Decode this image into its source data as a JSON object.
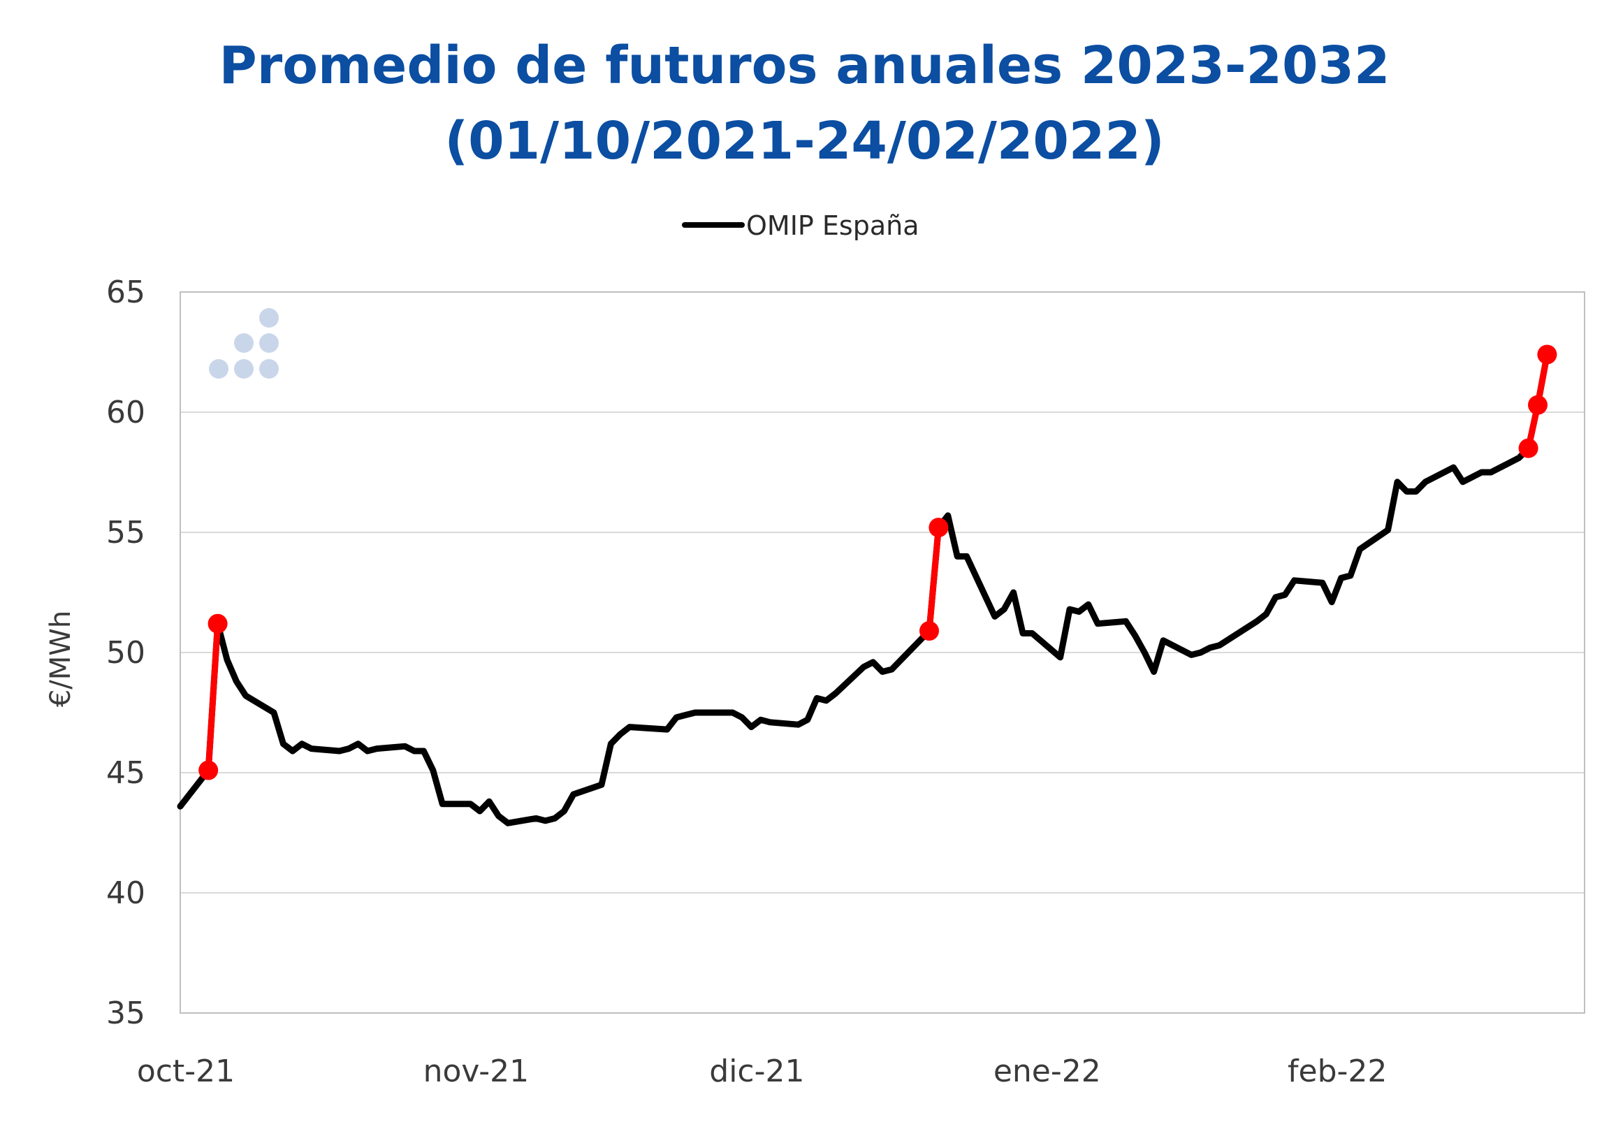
{
  "chart_data": {
    "type": "line",
    "title_line1": "Promedio de futuros anuales 2023-2032",
    "title_line2": "(01/10/2021-24/02/2022)",
    "ylabel": "€/MWh",
    "ylim": [
      35,
      65
    ],
    "yticks": [
      35,
      40,
      45,
      50,
      55,
      60,
      65
    ],
    "xlim": [
      "2021-10-01",
      "2022-02-28"
    ],
    "xticks": [
      {
        "date": "2021-10-01",
        "label": "oct-21"
      },
      {
        "date": "2021-11-01",
        "label": "nov-21"
      },
      {
        "date": "2021-12-01",
        "label": "dic-21"
      },
      {
        "date": "2022-01-01",
        "label": "ene-22"
      },
      {
        "date": "2022-02-01",
        "label": "feb-22"
      }
    ],
    "grid": "horizontal",
    "legend": "top-center",
    "series": [
      {
        "name": "OMIP España",
        "color": "#000000",
        "points": [
          [
            "2021-10-01",
            43.6
          ],
          [
            "2021-10-04",
            45.1
          ],
          [
            "2021-10-05",
            51.2
          ],
          [
            "2021-10-06",
            49.7
          ],
          [
            "2021-10-07",
            48.8
          ],
          [
            "2021-10-08",
            48.2
          ],
          [
            "2021-10-11",
            47.5
          ],
          [
            "2021-10-12",
            46.2
          ],
          [
            "2021-10-13",
            45.9
          ],
          [
            "2021-10-14",
            46.2
          ],
          [
            "2021-10-15",
            46.0
          ],
          [
            "2021-10-18",
            45.9
          ],
          [
            "2021-10-19",
            46.0
          ],
          [
            "2021-10-20",
            46.2
          ],
          [
            "2021-10-21",
            45.9
          ],
          [
            "2021-10-22",
            46.0
          ],
          [
            "2021-10-25",
            46.1
          ],
          [
            "2021-10-26",
            45.9
          ],
          [
            "2021-10-27",
            45.9
          ],
          [
            "2021-10-28",
            45.1
          ],
          [
            "2021-10-29",
            43.7
          ],
          [
            "2021-11-01",
            43.7
          ],
          [
            "2021-11-02",
            43.4
          ],
          [
            "2021-11-03",
            43.8
          ],
          [
            "2021-11-04",
            43.2
          ],
          [
            "2021-11-05",
            42.9
          ],
          [
            "2021-11-08",
            43.1
          ],
          [
            "2021-11-09",
            43.0
          ],
          [
            "2021-11-10",
            43.1
          ],
          [
            "2021-11-11",
            43.4
          ],
          [
            "2021-11-12",
            44.1
          ],
          [
            "2021-11-15",
            44.5
          ],
          [
            "2021-11-16",
            46.2
          ],
          [
            "2021-11-17",
            46.6
          ],
          [
            "2021-11-18",
            46.9
          ],
          [
            "2021-11-22",
            46.8
          ],
          [
            "2021-11-23",
            47.3
          ],
          [
            "2021-11-24",
            47.4
          ],
          [
            "2021-11-25",
            47.5
          ],
          [
            "2021-11-26",
            47.5
          ],
          [
            "2021-11-29",
            47.5
          ],
          [
            "2021-11-30",
            47.3
          ],
          [
            "2021-12-01",
            46.9
          ],
          [
            "2021-12-02",
            47.2
          ],
          [
            "2021-12-03",
            47.1
          ],
          [
            "2021-12-06",
            47.0
          ],
          [
            "2021-12-07",
            47.2
          ],
          [
            "2021-12-08",
            48.1
          ],
          [
            "2021-12-09",
            48.0
          ],
          [
            "2021-12-10",
            48.3
          ],
          [
            "2021-12-13",
            49.4
          ],
          [
            "2021-12-14",
            49.6
          ],
          [
            "2021-12-15",
            49.2
          ],
          [
            "2021-12-16",
            49.3
          ],
          [
            "2021-12-20",
            50.9
          ],
          [
            "2021-12-21",
            55.2
          ],
          [
            "2021-12-22",
            55.7
          ],
          [
            "2021-12-23",
            54.0
          ],
          [
            "2021-12-24",
            54.0
          ],
          [
            "2021-12-27",
            51.5
          ],
          [
            "2021-12-28",
            51.8
          ],
          [
            "2021-12-29",
            52.5
          ],
          [
            "2021-12-30",
            50.8
          ],
          [
            "2021-12-31",
            50.8
          ],
          [
            "2022-01-03",
            49.8
          ],
          [
            "2022-01-04",
            51.8
          ],
          [
            "2022-01-05",
            51.7
          ],
          [
            "2022-01-06",
            52.0
          ],
          [
            "2022-01-07",
            51.2
          ],
          [
            "2022-01-10",
            51.3
          ],
          [
            "2022-01-11",
            50.7
          ],
          [
            "2022-01-12",
            50.0
          ],
          [
            "2022-01-13",
            49.2
          ],
          [
            "2022-01-14",
            50.5
          ],
          [
            "2022-01-17",
            49.9
          ],
          [
            "2022-01-18",
            50.0
          ],
          [
            "2022-01-19",
            50.2
          ],
          [
            "2022-01-20",
            50.3
          ],
          [
            "2022-01-24",
            51.3
          ],
          [
            "2022-01-25",
            51.6
          ],
          [
            "2022-01-26",
            52.3
          ],
          [
            "2022-01-27",
            52.4
          ],
          [
            "2022-01-28",
            53.0
          ],
          [
            "2022-01-31",
            52.9
          ],
          [
            "2022-02-01",
            52.1
          ],
          [
            "2022-02-02",
            53.1
          ],
          [
            "2022-02-03",
            53.2
          ],
          [
            "2022-02-04",
            54.3
          ],
          [
            "2022-02-07",
            55.1
          ],
          [
            "2022-02-08",
            57.1
          ],
          [
            "2022-02-09",
            56.7
          ],
          [
            "2022-02-10",
            56.7
          ],
          [
            "2022-02-11",
            57.1
          ],
          [
            "2022-02-14",
            57.7
          ],
          [
            "2022-02-15",
            57.1
          ],
          [
            "2022-02-16",
            57.3
          ],
          [
            "2022-02-17",
            57.5
          ],
          [
            "2022-02-18",
            57.5
          ],
          [
            "2022-02-21",
            58.1
          ],
          [
            "2022-02-22",
            58.5
          ],
          [
            "2022-02-23",
            60.3
          ],
          [
            "2022-02-24",
            62.4
          ]
        ]
      }
    ],
    "highlights": {
      "color": "#ff0000",
      "segments": [
        [
          [
            "2021-10-04",
            45.1
          ],
          [
            "2021-10-05",
            51.2
          ]
        ],
        [
          [
            "2021-12-20",
            50.9
          ],
          [
            "2021-12-21",
            55.2
          ]
        ],
        [
          [
            "2022-02-22",
            58.5
          ],
          [
            "2022-02-23",
            60.3
          ],
          [
            "2022-02-24",
            62.4
          ]
        ]
      ]
    },
    "colors": {
      "title": "#0b4ea2",
      "grid": "#d9d9d9",
      "axis": "#bfbfbf",
      "logo": "#c9d6ea"
    }
  }
}
